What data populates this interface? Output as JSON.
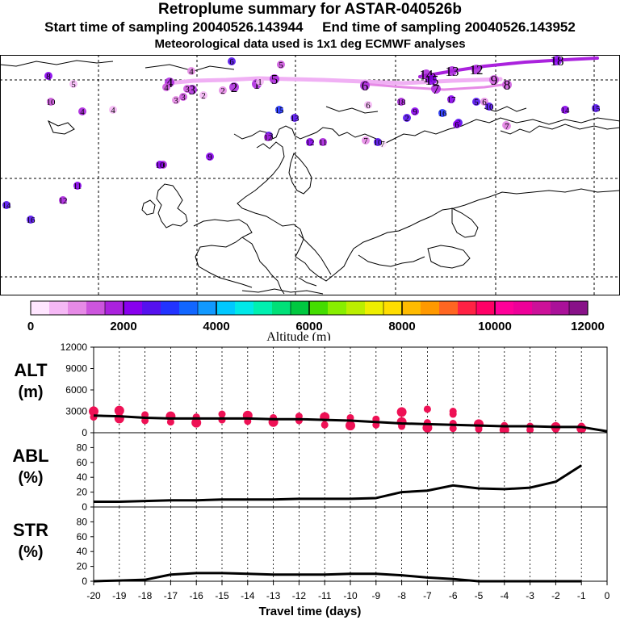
{
  "header": {
    "title": "Retroplume summary for ASTAR-040526b",
    "sampling_line": "Start time of sampling 20040526.143944     End time of sampling 20040526.143952",
    "met_line": "Meteorological data used is 1x1 deg ECMWF analyses"
  },
  "colorbar": {
    "label": "Altitude (m)",
    "tick_labels": [
      "0",
      "2000",
      "4000",
      "6000",
      "8000",
      "10000",
      "12000"
    ],
    "colors": [
      "#ffe6ff",
      "#f5b8f5",
      "#e68ae6",
      "#cc55dd",
      "#aa22dd",
      "#8800ee",
      "#5511ee",
      "#2233ff",
      "#1166ff",
      "#1199ff",
      "#00c8ff",
      "#00e8e8",
      "#00f0b0",
      "#00e078",
      "#00c840",
      "#44dd00",
      "#88ee00",
      "#bbee00",
      "#eeee00",
      "#ffdd00",
      "#ffbb00",
      "#ff9900",
      "#ff6622",
      "#ff2244",
      "#ff0066",
      "#ff0099",
      "#ee0099",
      "#cc1199",
      "#aa1199",
      "#881188"
    ]
  },
  "map": {
    "trajectory_points": [
      {
        "label": "1",
        "alt": 1900
      },
      {
        "label": "2",
        "alt": 1800
      },
      {
        "label": "3",
        "alt": 1700
      },
      {
        "label": "4",
        "alt": 1800
      },
      {
        "label": "5",
        "alt": 1900
      },
      {
        "label": "6",
        "alt": 1700
      },
      {
        "label": "7",
        "alt": 1600
      },
      {
        "label": "8",
        "alt": 1500
      },
      {
        "label": "9",
        "alt": 1400
      },
      {
        "label": "10",
        "alt": 1700
      },
      {
        "label": "12",
        "alt": 1800
      },
      {
        "label": "13",
        "alt": 1900
      },
      {
        "label": "14",
        "alt": 1900
      },
      {
        "label": "15",
        "alt": 2000
      },
      {
        "label": "18",
        "alt": 2200
      }
    ],
    "cluster_labels": [
      {
        "label": "8",
        "alt": 2200
      },
      {
        "label": "4",
        "alt": 1100
      },
      {
        "label": "6",
        "alt": 2600
      },
      {
        "label": "4",
        "alt": 600
      },
      {
        "label": "4",
        "alt": 1200
      },
      {
        "label": "3",
        "alt": 1500
      },
      {
        "label": "3",
        "alt": 1300
      },
      {
        "label": "3",
        "alt": 800
      },
      {
        "label": "2",
        "alt": 1000
      },
      {
        "label": "2",
        "alt": 600
      },
      {
        "label": "1",
        "alt": 500
      },
      {
        "label": "5",
        "alt": 600
      },
      {
        "label": "5",
        "alt": 1300
      },
      {
        "label": "6",
        "alt": 400
      },
      {
        "label": "6",
        "alt": 800
      },
      {
        "label": "7",
        "alt": 1100
      },
      {
        "label": "7",
        "alt": 300
      },
      {
        "label": "8",
        "alt": 1000
      },
      {
        "label": "9",
        "alt": 1800
      },
      {
        "label": "9",
        "alt": 2300
      },
      {
        "label": "10",
        "alt": 2100
      },
      {
        "label": "10",
        "alt": 2600
      },
      {
        "label": "10",
        "alt": 1400
      },
      {
        "label": "11",
        "alt": 2200
      },
      {
        "label": "11",
        "alt": 1900
      },
      {
        "label": "12",
        "alt": 2000
      },
      {
        "label": "12",
        "alt": 1700
      },
      {
        "label": "13",
        "alt": 2400
      },
      {
        "label": "13",
        "alt": 2500
      },
      {
        "label": "14",
        "alt": 2300
      },
      {
        "label": "14",
        "alt": 2700
      },
      {
        "label": "15",
        "alt": 2800
      },
      {
        "label": "15",
        "alt": 2600
      },
      {
        "label": "16",
        "alt": 2500
      },
      {
        "label": "16",
        "alt": 2900
      },
      {
        "label": "17",
        "alt": 2300
      },
      {
        "label": "18",
        "alt": 1800
      },
      {
        "label": "4",
        "alt": 1600
      },
      {
        "label": "5",
        "alt": 2500
      },
      {
        "label": "2",
        "alt": 2700
      },
      {
        "label": "7",
        "alt": 800
      },
      {
        "label": "8",
        "alt": 2400
      },
      {
        "label": "9",
        "alt": 2100
      },
      {
        "label": "6",
        "alt": 2300
      },
      {
        "label": "10",
        "alt": 2600
      },
      {
        "label": "12",
        "alt": 1900
      }
    ]
  },
  "chart_data": [
    {
      "type": "line",
      "name": "ALT",
      "panel_label": "ALT",
      "unit_label": "(m)",
      "x": [
        -20,
        -19,
        -18,
        -17,
        -16,
        -15,
        -14,
        -13,
        -12,
        -11,
        -10,
        -9,
        -8,
        -7,
        -6,
        -5,
        -4,
        -3,
        -2,
        -1,
        0
      ],
      "y": [
        2400,
        2300,
        2100,
        2000,
        2000,
        2000,
        2000,
        1900,
        1900,
        1800,
        1700,
        1500,
        1300,
        1200,
        1100,
        1000,
        900,
        900,
        800,
        800,
        200
      ],
      "ylim": [
        0,
        12000
      ],
      "yticks": [
        0,
        3000,
        6000,
        9000,
        12000
      ],
      "scatter": [
        {
          "x": -20,
          "y": 3000
        },
        {
          "x": -20,
          "y": 2200
        },
        {
          "x": -19,
          "y": 2800
        },
        {
          "x": -19,
          "y": 2000
        },
        {
          "x": -18,
          "y": 2500
        },
        {
          "x": -18,
          "y": 1700
        },
        {
          "x": -17,
          "y": 2300
        },
        {
          "x": -17,
          "y": 1500
        },
        {
          "x": -16,
          "y": 2200
        },
        {
          "x": -16,
          "y": 1400
        },
        {
          "x": -15,
          "y": 2600
        },
        {
          "x": -15,
          "y": 1800
        },
        {
          "x": -14,
          "y": 2400
        },
        {
          "x": -14,
          "y": 1600
        },
        {
          "x": -13,
          "y": 2100
        },
        {
          "x": -13,
          "y": 1500
        },
        {
          "x": -12,
          "y": 2300
        },
        {
          "x": -12,
          "y": 1700
        },
        {
          "x": -11,
          "y": 2200
        },
        {
          "x": -11,
          "y": 1100
        },
        {
          "x": -10,
          "y": 2100
        },
        {
          "x": -10,
          "y": 1000
        },
        {
          "x": -9,
          "y": 1900
        },
        {
          "x": -9,
          "y": 1100
        },
        {
          "x": -8,
          "y": 1500
        },
        {
          "x": -8,
          "y": 900
        },
        {
          "x": -7,
          "y": 1400
        },
        {
          "x": -7,
          "y": 700
        },
        {
          "x": -6,
          "y": 1300
        },
        {
          "x": -6,
          "y": 600
        },
        {
          "x": -5,
          "y": 1200
        },
        {
          "x": -5,
          "y": 500
        },
        {
          "x": -4,
          "y": 1000
        },
        {
          "x": -4,
          "y": 400
        },
        {
          "x": -3,
          "y": 900
        },
        {
          "x": -3,
          "y": 400
        },
        {
          "x": -2,
          "y": 800
        },
        {
          "x": -2,
          "y": 500
        },
        {
          "x": -1,
          "y": 900
        },
        {
          "x": -1,
          "y": 600
        },
        {
          "x": -7,
          "y": 3300
        },
        {
          "x": -6,
          "y": 3000
        },
        {
          "x": -8,
          "y": 2900
        },
        {
          "x": -20,
          "y": 3200
        },
        {
          "x": -6,
          "y": 2600
        },
        {
          "x": -19,
          "y": 3100
        }
      ],
      "scatter_color": "#ee1155"
    },
    {
      "type": "line",
      "name": "ABL",
      "panel_label": "ABL",
      "unit_label": "(%)",
      "x": [
        -20,
        -19,
        -18,
        -17,
        -16,
        -15,
        -14,
        -13,
        -12,
        -11,
        -10,
        -9,
        -8,
        -7,
        -6,
        -5,
        -4,
        -3,
        -2,
        -1
      ],
      "y": [
        7,
        7,
        8,
        9,
        9,
        10,
        10,
        10,
        11,
        11,
        11,
        12,
        20,
        22,
        29,
        25,
        24,
        26,
        34,
        56
      ],
      "ylim": [
        0,
        100
      ],
      "yticks": [
        0,
        20,
        40,
        60,
        80
      ]
    },
    {
      "type": "line",
      "name": "STR",
      "panel_label": "STR",
      "unit_label": "(%)",
      "x": [
        -20,
        -19,
        -18,
        -17,
        -16,
        -15,
        -14,
        -13,
        -12,
        -11,
        -10,
        -9,
        -8,
        -7,
        -6,
        -5,
        -4,
        -3,
        -2,
        -1
      ],
      "y": [
        0,
        1,
        2,
        9,
        11,
        11,
        10,
        9,
        9,
        9,
        10,
        10,
        8,
        5,
        3,
        0,
        0,
        0,
        0,
        0
      ],
      "ylim": [
        0,
        100
      ],
      "yticks": [
        0,
        20,
        40,
        60,
        80
      ],
      "xlabel": "Travel time (days)",
      "xticks": [
        -20,
        -19,
        -18,
        -17,
        -16,
        -15,
        -14,
        -13,
        -12,
        -11,
        -10,
        -9,
        -8,
        -7,
        -6,
        -5,
        -4,
        -3,
        -2,
        -1,
        0
      ]
    }
  ]
}
